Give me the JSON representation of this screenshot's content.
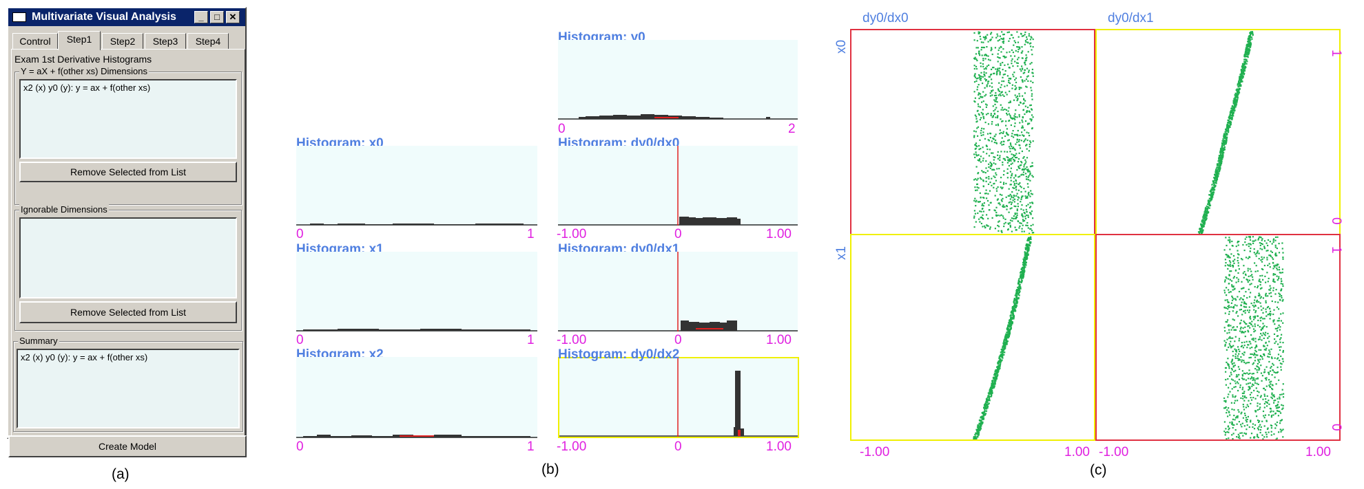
{
  "window": {
    "title": "Multivariate Visual Analysis",
    "buttons": [
      "_",
      "□",
      "✕"
    ],
    "tabs": [
      {
        "label": "Control",
        "active": false
      },
      {
        "label": "Step1",
        "active": true
      },
      {
        "label": "Step2",
        "active": false
      },
      {
        "label": "Step3",
        "active": false
      },
      {
        "label": "Step4",
        "active": false
      }
    ],
    "section_heading": "Exam 1st Derivative Histograms",
    "group1": {
      "label": "Y = aX + f(other xs) Dimensions",
      "items": [
        "x2 (x) y0 (y): y = ax + f(other xs)"
      ],
      "button": "Remove Selected from List"
    },
    "group2": {
      "label": "Ignorable Dimensions",
      "items": [],
      "button": "Remove Selected from List"
    },
    "summary": {
      "label": "Summary",
      "items": [
        "x2 (x) y0 (y): y = ax + f(other xs)"
      ]
    },
    "create_button": "Create Model"
  },
  "captions": {
    "a": "(a)",
    "b": "(b)",
    "c": "(c)"
  },
  "histograms": {
    "y0": {
      "title": "Histogram: y0",
      "min": "0",
      "mid": "",
      "max": "2"
    },
    "x0": {
      "title": "Histogram: x0",
      "min": "0",
      "mid": "",
      "max": "1"
    },
    "dydx0": {
      "title": "Histogram: dy0/dx0",
      "min": "-1.00",
      "mid": "0",
      "max": "1.00"
    },
    "x1": {
      "title": "Histogram: x1",
      "min": "0",
      "mid": "",
      "max": "1"
    },
    "dydx1": {
      "title": "Histogram: dy0/dx1",
      "min": "-1.00",
      "mid": "0",
      "max": "1.00"
    },
    "x2": {
      "title": "Histogram: x2",
      "min": "0",
      "mid": "",
      "max": "1"
    },
    "dydx2": {
      "title": "Histogram: dy0/dx2",
      "min": "-1.00",
      "mid": "0",
      "max": "1.00"
    }
  },
  "scatter": {
    "col_labels": [
      "dy0/dx0",
      "dy0/dx1"
    ],
    "row_labels": [
      "x0",
      "x1"
    ],
    "x_min": "-1.00",
    "x_max": "1.00",
    "y_min": "0",
    "y_max": "1",
    "colors": {
      "points": "#20b050",
      "frame_red": "#e03040",
      "frame_yellow": "#f0f000"
    }
  },
  "colors": {
    "title_blue": "#4f7fe0",
    "tick_magenta": "#e020e0",
    "bar": "#333333",
    "zero_line": "#e02020"
  }
}
